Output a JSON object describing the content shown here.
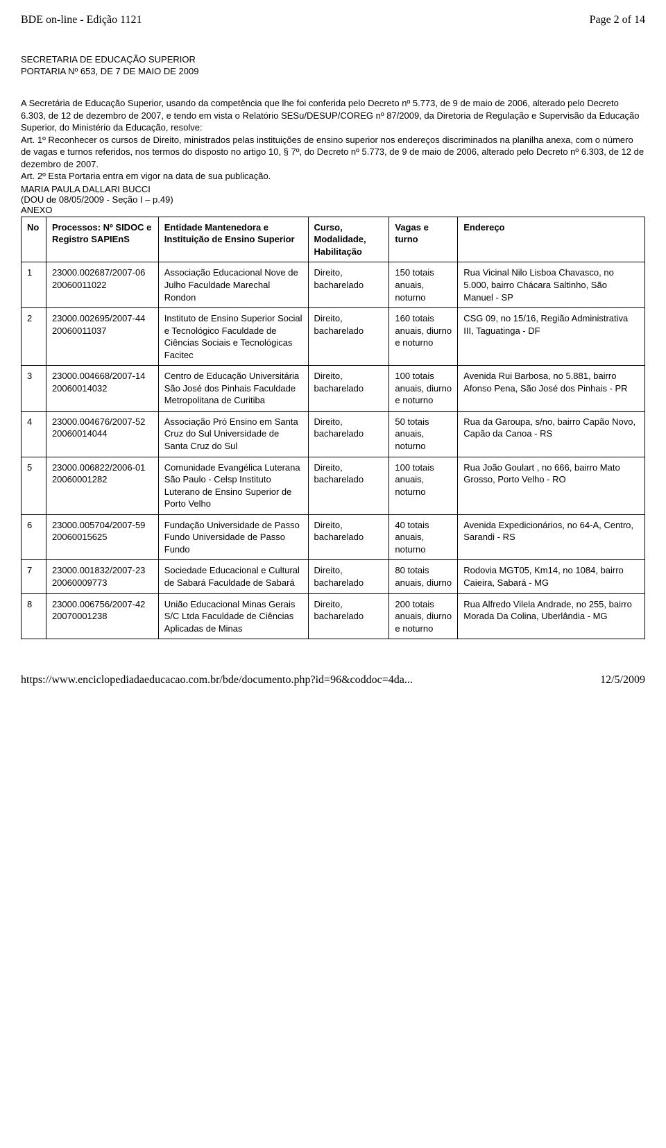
{
  "header": {
    "left": "BDE on-line - Edição 1121",
    "right": "Page 2 of 14"
  },
  "doc": {
    "secretaria": "SECRETARIA DE EDUCAÇÃO SUPERIOR",
    "portaria": "PORTARIA Nº 653, DE 7 DE MAIO DE 2009",
    "para1": "A Secretária de Educação Superior, usando da competência que lhe foi conferida pelo Decreto nº 5.773, de 9 de maio de 2006, alterado pelo Decreto 6.303, de 12 de dezembro de 2007, e tendo em vista o Relatório SESu/DESUP/COREG nº 87/2009, da Diretoria de Regulação e Supervisão da Educação Superior, do Ministério da Educação, resolve:",
    "art1": "Art. 1º Reconhecer os cursos de Direito, ministrados pelas instituições de ensino superior nos endereços discriminados na planilha anexa, com o número de vagas e turnos referidos, nos termos do disposto no artigo 10, § 7º, do Decreto nº 5.773, de 9 de maio de 2006, alterado pelo Decreto nº 6.303, de 12 de dezembro de 2007.",
    "art2": "Art. 2º Esta Portaria entra em vigor na data de sua publicação.",
    "signature": "MARIA PAULA DALLARI BUCCI",
    "dou": "(DOU de 08/05/2009 - Seção I – p.49)",
    "anexo": "ANEXO"
  },
  "table": {
    "columns": {
      "no": "No",
      "proc": "Processos: Nº SIDOC e Registro SAPIEnS",
      "ent": "Entidade Mantenedora e Instituição de Ensino Superior",
      "curso": "Curso, Modalidade, Habilitação",
      "vagas": "Vagas e turno",
      "end": "Endereço"
    },
    "rows": [
      {
        "no": "1",
        "proc": "23000.002687/2007-06 20060011022",
        "ent": "Associação Educacional Nove de Julho Faculdade Marechal Rondon",
        "curso": "Direito, bacharelado",
        "vagas": "150 totais anuais, noturno",
        "end": "Rua Vicinal Nilo Lisboa Chavasco, no 5.000, bairro Chácara Saltinho, São Manuel - SP"
      },
      {
        "no": "2",
        "proc": "23000.002695/2007-44 20060011037",
        "ent": "Instituto de Ensino Superior Social e Tecnológico Faculdade de Ciências Sociais e Tecnológicas Facitec",
        "curso": "Direito, bacharelado",
        "vagas": "160 totais anuais, diurno e noturno",
        "end": "CSG 09, no 15/16, Região Administrativa III, Taguatinga - DF"
      },
      {
        "no": "3",
        "proc": "23000.004668/2007-14 20060014032",
        "ent": "Centro de Educação Universitária São José dos Pinhais Faculdade Metropolitana de Curitiba",
        "curso": "Direito, bacharelado",
        "vagas": "100 totais anuais, diurno e noturno",
        "end": "Avenida Rui Barbosa, no 5.881, bairro Afonso Pena, São José dos Pinhais - PR"
      },
      {
        "no": "4",
        "proc": "23000.004676/2007-52 20060014044",
        "ent": "Associação Pró Ensino em Santa Cruz do Sul Universidade de Santa Cruz do Sul",
        "curso": "Direito, bacharelado",
        "vagas": "50 totais anuais, noturno",
        "end": "Rua da Garoupa, s/no, bairro Capão Novo, Capão da Canoa - RS"
      },
      {
        "no": "5",
        "proc": "23000.006822/2006-01 20060001282",
        "ent": "Comunidade Evangélica Luterana São Paulo - Celsp Instituto Luterano de Ensino Superior de Porto Velho",
        "curso": "Direito, bacharelado",
        "vagas": "100 totais anuais, noturno",
        "end": "Rua João Goulart , no 666, bairro Mato Grosso, Porto Velho - RO"
      },
      {
        "no": "6",
        "proc": "23000.005704/2007-59 20060015625",
        "ent": "Fundação Universidade de Passo Fundo Universidade de Passo Fundo",
        "curso": "Direito, bacharelado",
        "vagas": "40 totais anuais, noturno",
        "end": "Avenida Expedicionários, no 64-A, Centro, Sarandi - RS"
      },
      {
        "no": "7",
        "proc": "23000.001832/2007-23 20060009773",
        "ent": "Sociedade Educacional e Cultural de Sabará Faculdade de Sabará",
        "curso": "Direito, bacharelado",
        "vagas": "80 totais anuais, diurno",
        "end": "Rodovia MGT05, Km14, no 1084, bairro Caieira, Sabará - MG"
      },
      {
        "no": "8",
        "proc": "23000.006756/2007-42 20070001238",
        "ent": "União Educacional Minas Gerais S/C Ltda Faculdade de Ciências Aplicadas de Minas",
        "curso": "Direito, bacharelado",
        "vagas": "200 totais anuais, diurno e noturno",
        "end": "Rua Alfredo Vilela Andrade, no 255, bairro Morada Da Colina, Uberlândia - MG"
      }
    ]
  },
  "footer": {
    "left": "https://www.enciclopediadaeducacao.com.br/bde/documento.php?id=96&coddoc=4da...",
    "right": "12/5/2009"
  }
}
